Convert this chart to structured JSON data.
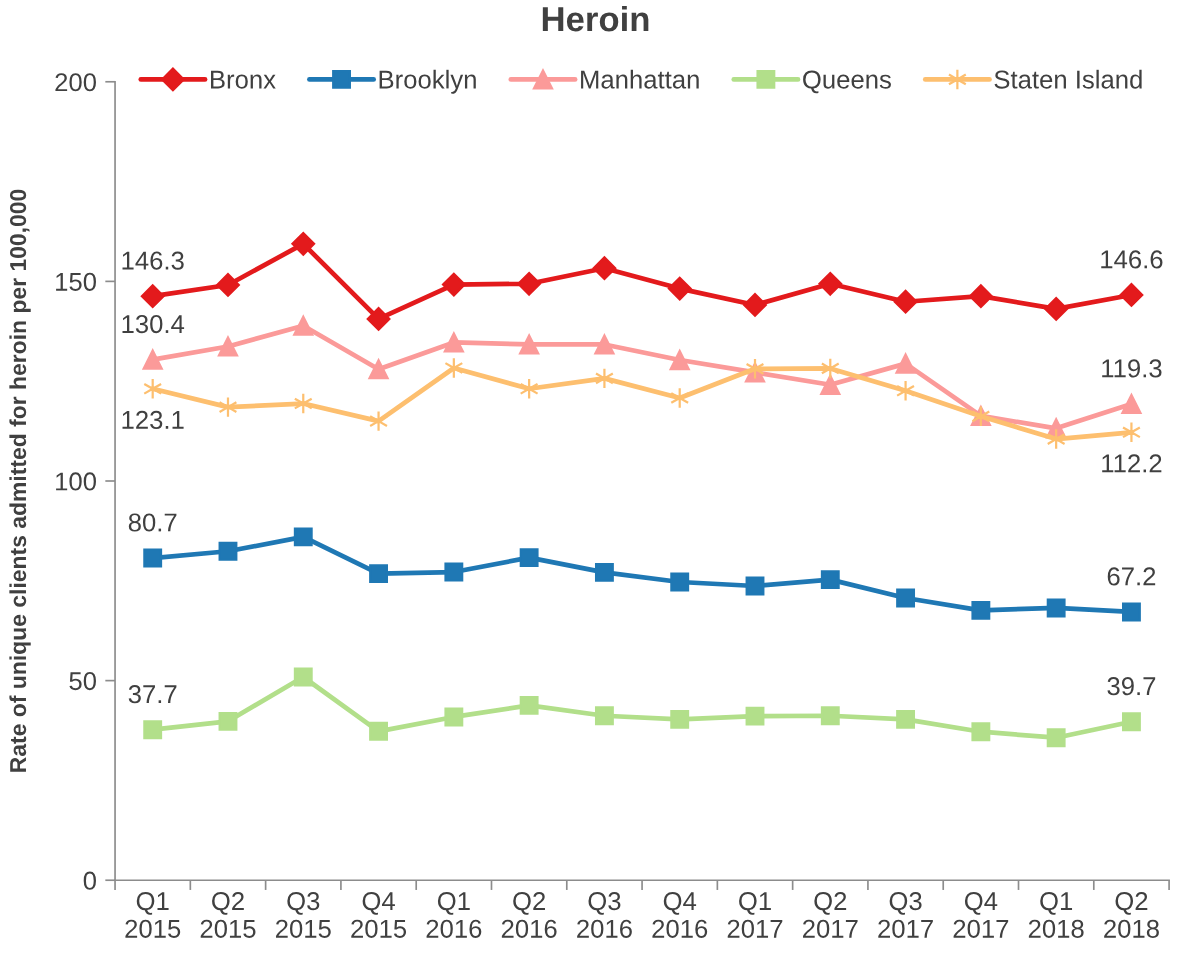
{
  "chart_data": {
    "type": "line",
    "title": "Heroin",
    "ylabel": "Rate of unique clients admitted for heroin per 100,000",
    "categories": [
      "Q1\n2015",
      "Q2\n2015",
      "Q3\n2015",
      "Q4\n2015",
      "Q1\n2016",
      "Q2\n2016",
      "Q3\n2016",
      "Q4\n2016",
      "Q1\n2017",
      "Q2\n2017",
      "Q3\n2017",
      "Q4\n2017",
      "Q1\n2018",
      "Q2\n2018"
    ],
    "ylim": [
      0,
      200
    ],
    "yticks": [
      0,
      50,
      100,
      150,
      200
    ],
    "legend": "top",
    "line_style": "solid",
    "series": [
      {
        "name": "Bronx",
        "color": "#e31a1c",
        "marker": "diamond",
        "values": [
          146.3,
          149.1,
          159.4,
          140.6,
          149.2,
          149.4,
          153.3,
          148.2,
          144.1,
          149.4,
          144.9,
          146.3,
          143.1,
          146.6
        ],
        "value_labels": [
          "146.3",
          null,
          null,
          null,
          null,
          null,
          null,
          null,
          null,
          null,
          null,
          null,
          null,
          "146.6"
        ]
      },
      {
        "name": "Brooklyn",
        "color": "#1f78b4",
        "marker": "square",
        "values": [
          80.7,
          82.4,
          86.0,
          76.8,
          77.2,
          80.8,
          77.1,
          74.7,
          73.7,
          75.3,
          70.7,
          67.6,
          68.2,
          67.2
        ],
        "value_labels": [
          "80.7",
          null,
          null,
          null,
          null,
          null,
          null,
          null,
          null,
          null,
          null,
          null,
          null,
          "67.2"
        ]
      },
      {
        "name": "Manhattan",
        "color": "#fb9a99",
        "marker": "triangle",
        "values": [
          130.4,
          133.7,
          138.9,
          128.0,
          134.7,
          134.2,
          134.2,
          130.3,
          127.2,
          124.1,
          129.4,
          116.3,
          113.2,
          119.3
        ],
        "value_labels": [
          "130.4",
          null,
          null,
          null,
          null,
          null,
          null,
          null,
          null,
          null,
          null,
          null,
          null,
          "119.3"
        ]
      },
      {
        "name": "Queens",
        "color": "#b2df8a",
        "marker": "square",
        "values": [
          37.7,
          39.8,
          50.9,
          37.3,
          40.9,
          43.8,
          41.2,
          40.3,
          41.1,
          41.2,
          40.3,
          37.2,
          35.7,
          39.7
        ],
        "value_labels": [
          "37.7",
          null,
          null,
          null,
          null,
          null,
          null,
          null,
          null,
          null,
          null,
          null,
          null,
          "39.7"
        ]
      },
      {
        "name": "Staten Island",
        "color": "#fdbf6f",
        "marker": "cross",
        "values": [
          123.1,
          118.5,
          119.4,
          115.0,
          128.3,
          123.1,
          125.7,
          120.8,
          128.1,
          128.2,
          122.6,
          116.2,
          110.5,
          112.2
        ],
        "value_labels": [
          "123.1",
          null,
          null,
          null,
          null,
          null,
          null,
          null,
          null,
          null,
          null,
          null,
          null,
          "112.2"
        ]
      }
    ]
  }
}
